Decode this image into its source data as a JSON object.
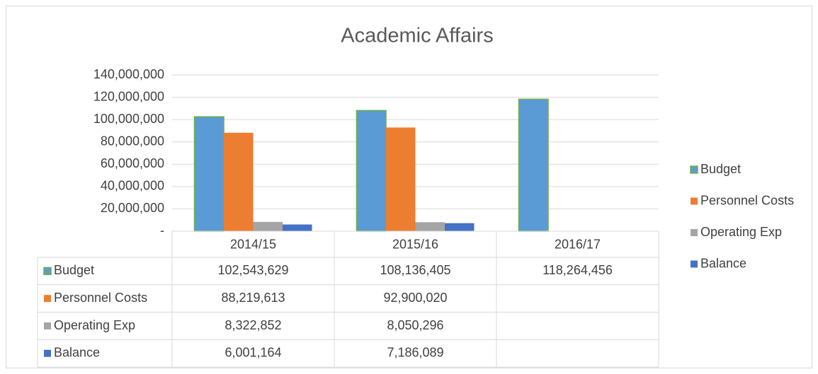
{
  "chart_data": {
    "type": "bar",
    "title": "Academic Affairs",
    "categories": [
      "2014/15",
      "2015/16",
      "2016/17"
    ],
    "series": [
      {
        "name": "Budget",
        "color": "#5b9bd5",
        "stroke": "#70ad47",
        "values": [
          102543629,
          108136405,
          118264456
        ],
        "value_labels": [
          "102,543,629",
          "108,136,405",
          "118,264,456"
        ]
      },
      {
        "name": "Personnel Costs",
        "color": "#ed7d31",
        "values": [
          88219613,
          92900020,
          null
        ],
        "value_labels": [
          "88,219,613",
          "92,900,020",
          null
        ]
      },
      {
        "name": "Operating Exp",
        "color": "#a5a5a5",
        "values": [
          8322852,
          8050296,
          null
        ],
        "value_labels": [
          "8,322,852",
          "8,050,296",
          null
        ]
      },
      {
        "name": "Balance",
        "color": "#4472c4",
        "values": [
          6001164,
          7186089,
          null
        ],
        "value_labels": [
          "6,001,164",
          "7,186,089",
          null
        ]
      }
    ],
    "ylim": [
      0,
      140000000
    ],
    "yticks": [
      {
        "value": 0,
        "label": "-"
      },
      {
        "value": 20000000,
        "label": "20,000,000"
      },
      {
        "value": 40000000,
        "label": "40,000,000"
      },
      {
        "value": 60000000,
        "label": "60,000,000"
      },
      {
        "value": 80000000,
        "label": "80,000,000"
      },
      {
        "value": 100000000,
        "label": "100,000,000"
      },
      {
        "value": 120000000,
        "label": "120,000,000"
      },
      {
        "value": 140000000,
        "label": "140,000,000"
      }
    ],
    "grid": true,
    "legend": "right",
    "data_table": true
  }
}
